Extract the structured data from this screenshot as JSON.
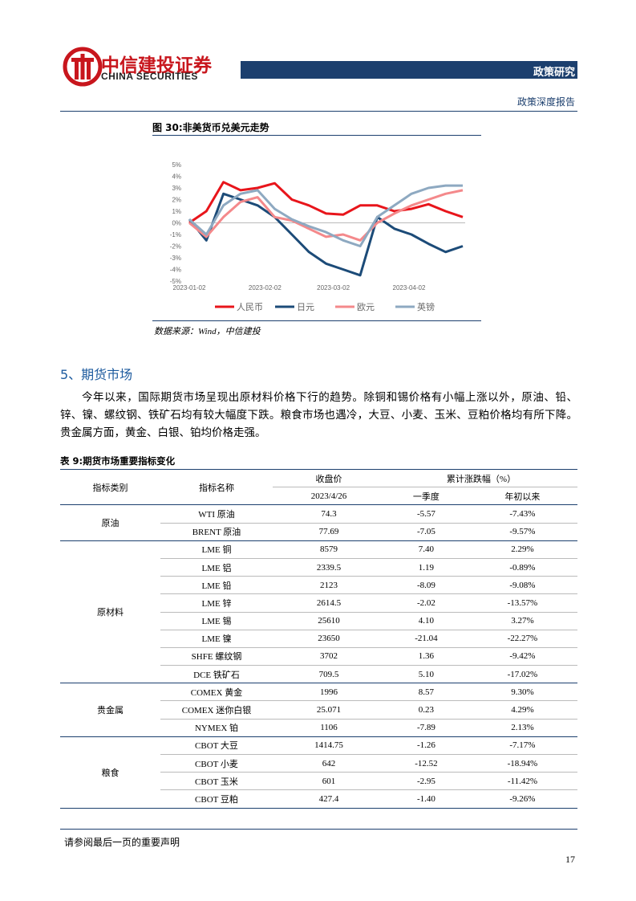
{
  "header": {
    "logo_cn": "中信建投证券",
    "logo_en": "CHINA SECURITIES",
    "section": "政策研究",
    "report_type": "政策深度报告"
  },
  "chart_data": {
    "type": "line",
    "title": "图 30:非美货币兑美元走势",
    "source": "数据来源：Wind，中信建投",
    "x": [
      "2023-01-02",
      "2023-01-09",
      "2023-01-16",
      "2023-01-23",
      "2023-01-30",
      "2023-02-06",
      "2023-02-13",
      "2023-02-20",
      "2023-02-27",
      "2023-03-06",
      "2023-03-13",
      "2023-03-20",
      "2023-03-27",
      "2023-04-03",
      "2023-04-10",
      "2023-04-17",
      "2023-04-24"
    ],
    "xlim": [
      "2023-01-02",
      "2023-04-25"
    ],
    "xticks": [
      "2023-01-02",
      "2023-02-02",
      "2023-03-02",
      "2023-04-02"
    ],
    "ylim": [
      -5,
      5
    ],
    "yticks": [
      {
        "value": 5,
        "label": "5%"
      },
      {
        "value": 4,
        "label": "4%"
      },
      {
        "value": 3,
        "label": "3%"
      },
      {
        "value": 2,
        "label": "2%"
      },
      {
        "value": 1,
        "label": "1%"
      },
      {
        "value": 0,
        "label": "0%"
      },
      {
        "value": -1,
        "label": "-1%"
      },
      {
        "value": -2,
        "label": "-2%"
      },
      {
        "value": -3,
        "label": "-3%"
      },
      {
        "value": -4,
        "label": "-4%"
      },
      {
        "value": -5,
        "label": "-5%"
      }
    ],
    "series": [
      {
        "name": "人民币",
        "color": "#e8151b",
        "values": [
          0,
          1.0,
          3.5,
          2.8,
          3.0,
          3.4,
          2.0,
          1.5,
          0.8,
          0.7,
          1.5,
          1.5,
          1.0,
          1.2,
          1.6,
          1.0,
          0.5
        ]
      },
      {
        "name": "日元",
        "color": "#1c4b78",
        "values": [
          0.3,
          -1.5,
          2.5,
          2.0,
          1.5,
          0.5,
          -1.0,
          -2.5,
          -3.5,
          -4.0,
          -4.5,
          0.5,
          -0.5,
          -1.0,
          -1.8,
          -2.5,
          -2.0
        ]
      },
      {
        "name": "欧元",
        "color": "#f4898b",
        "values": [
          0,
          -1.2,
          0.5,
          1.8,
          2.2,
          0.5,
          0.2,
          -0.5,
          -1.2,
          -1.0,
          -1.5,
          0,
          0.8,
          1.5,
          2.0,
          2.5,
          2.8
        ]
      },
      {
        "name": "英镑",
        "color": "#8ea9c1",
        "values": [
          0.3,
          -1.0,
          1.5,
          2.5,
          2.8,
          1.2,
          0.3,
          -0.3,
          -0.8,
          -1.5,
          -2.0,
          0.5,
          1.5,
          2.5,
          3.0,
          3.2,
          3.2
        ]
      }
    ]
  },
  "section": {
    "heading": "5、期货市场",
    "paragraph": "今年以来，国际期货市场呈现出原材料价格下行的趋势。除铜和锡价格有小幅上涨以外，原油、铅、锌、镍、螺纹钢、铁矿石均有较大幅度下跌。粮食市场也遇冷，大豆、小麦、玉米、豆粕价格均有所下降。贵金属方面，黄金、白银、铂均价格走强。"
  },
  "table": {
    "title": "表 9:期货市场重要指标变化",
    "header": {
      "category": "指标类别",
      "name": "指标名称",
      "price": "收盘价",
      "price_date": "2023/4/26",
      "change": "累计涨跌幅（%）",
      "q1": "一季度",
      "ytd": "年初以来"
    },
    "groups": [
      {
        "name": "原油",
        "rows": [
          [
            "WTI 原油",
            "74.3",
            "-5.57",
            "-7.43%"
          ],
          [
            "BRENT 原油",
            "77.69",
            "-7.05",
            "-9.57%"
          ]
        ]
      },
      {
        "name": "原材料",
        "rows": [
          [
            "LME 铜",
            "8579",
            "7.40",
            "2.29%"
          ],
          [
            "LME 铝",
            "2339.5",
            "1.19",
            "-0.89%"
          ],
          [
            "LME 铅",
            "2123",
            "-8.09",
            "-9.08%"
          ],
          [
            "LME 锌",
            "2614.5",
            "-2.02",
            "-13.57%"
          ],
          [
            "LME 锡",
            "25610",
            "4.10",
            "3.27%"
          ],
          [
            "LME 镍",
            "23650",
            "-21.04",
            "-22.27%"
          ],
          [
            "SHFE 螺纹钢",
            "3702",
            "1.36",
            "-9.42%"
          ],
          [
            "DCE 铁矿石",
            "709.5",
            "5.10",
            "-17.02%"
          ]
        ]
      },
      {
        "name": "贵金属",
        "rows": [
          [
            "COMEX 黄金",
            "1996",
            "8.57",
            "9.30%"
          ],
          [
            "COMEX 迷你白银",
            "25.071",
            "0.23",
            "4.29%"
          ],
          [
            "NYMEX 铂",
            "1106",
            "-7.89",
            "2.13%"
          ]
        ]
      },
      {
        "name": "粮食",
        "rows": [
          [
            "CBOT 大豆",
            "1414.75",
            "-1.26",
            "-7.17%"
          ],
          [
            "CBOT 小麦",
            "642",
            "-12.52",
            "-18.94%"
          ],
          [
            "CBOT 玉米",
            "601",
            "-2.95",
            "-11.42%"
          ],
          [
            "CBOT 豆粕",
            "427.4",
            "-1.40",
            "-9.26%"
          ]
        ]
      }
    ]
  },
  "footer": {
    "notice": "请参阅最后一页的重要声明",
    "page": "17"
  }
}
